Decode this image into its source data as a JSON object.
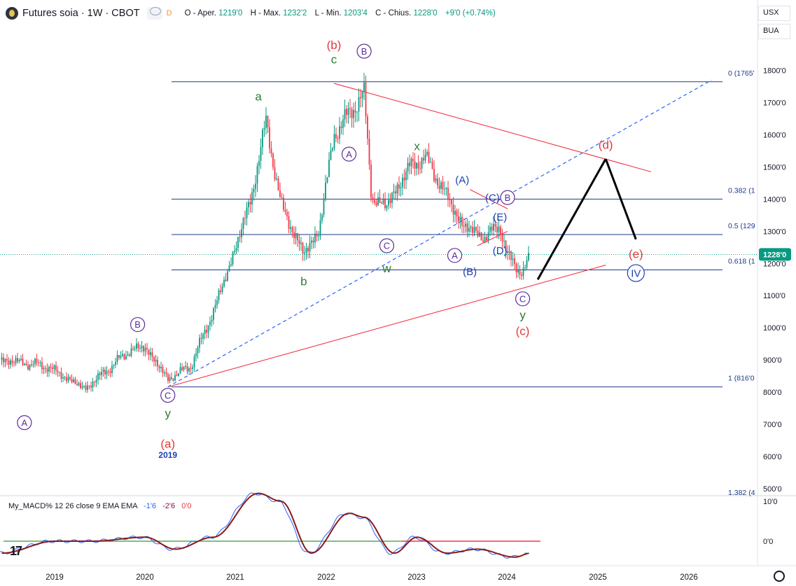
{
  "header": {
    "title": "Futures soia · 1W · CBOT",
    "badge": "D",
    "open_label": "O - Aper.",
    "open": "1219'0",
    "high_label": "H - Max.",
    "high": "1232'2",
    "low_label": "L - Min.",
    "low": "1203'4",
    "close_label": "C - Chius.",
    "close": "1228'0",
    "change": "+9'0 (+0.74%)"
  },
  "right_controls": {
    "currency": "USX",
    "unit": "BUA"
  },
  "price_axis": {
    "ticks": [
      500,
      600,
      700,
      800,
      900,
      1000,
      1100,
      1200,
      1300,
      1400,
      1500,
      1600,
      1700,
      1800
    ],
    "tick_labels": [
      "500'0",
      "600'0",
      "700'0",
      "800'0",
      "900'0",
      "1000'0",
      "1100'0",
      "1200'0",
      "1300'0",
      "1400'0",
      "1500'0",
      "1600'0",
      "1700'0",
      "1800'0"
    ],
    "last_price_label": "1228'0",
    "last_price": 1228
  },
  "time_axis": {
    "labels": [
      "2019",
      "2020",
      "2021",
      "2022",
      "2023",
      "2024",
      "2025",
      "2026"
    ]
  },
  "macd": {
    "label": "My_MACD% 12 26 close 9 EMA EMA",
    "v1": "-1'6",
    "v2": "-2'6",
    "v3": "0'0",
    "ticks": [
      "10'0",
      "0'0"
    ]
  },
  "chart_data": {
    "type": "candlestick",
    "fib_levels": [
      {
        "label": "0 (1765'",
        "price": 1765
      },
      {
        "label": "0.382 (1",
        "price": 1400
      },
      {
        "label": "0.5 (129",
        "price": 1290
      },
      {
        "label": "0.618 (1",
        "price": 1180
      },
      {
        "label": "1 (816'0",
        "price": 816
      },
      {
        "label": "1.382 (4",
        "price": 450
      }
    ],
    "price_series_weekly_close_approx": [
      [
        "2018-06",
        900
      ],
      [
        "2018-12",
        880
      ],
      [
        "2019-05",
        810
      ],
      [
        "2019-08",
        870
      ],
      [
        "2019-11",
        930
      ],
      [
        "2020-01",
        940
      ],
      [
        "2020-04",
        840
      ],
      [
        "2020-07",
        880
      ],
      [
        "2020-10",
        1050
      ],
      [
        "2020-12",
        1180
      ],
      [
        "2021-03",
        1400
      ],
      [
        "2021-05",
        1640
      ],
      [
        "2021-07",
        1380
      ],
      [
        "2021-10",
        1230
      ],
      [
        "2021-12",
        1300
      ],
      [
        "2022-02",
        1600
      ],
      [
        "2022-06",
        1730
      ],
      [
        "2022-07",
        1400
      ],
      [
        "2022-09",
        1380
      ],
      [
        "2022-12",
        1500
      ],
      [
        "2023-02",
        1530
      ],
      [
        "2023-04",
        1450
      ],
      [
        "2023-07",
        1320
      ],
      [
        "2023-10",
        1280
      ],
      [
        "2023-12",
        1320
      ],
      [
        "2024-01",
        1220
      ],
      [
        "2024-03",
        1170
      ],
      [
        "2024-04",
        1228
      ]
    ],
    "wave_labels": [
      {
        "text": "A",
        "style": "circle-purple",
        "date": "2018-09",
        "price": 705
      },
      {
        "text": "B",
        "style": "circle-purple",
        "date": "2019-12",
        "price": 1010
      },
      {
        "text": "C",
        "style": "circle-purple",
        "date": "2020-04",
        "price": 790
      },
      {
        "text": "y",
        "style": "green",
        "date": "2020-04",
        "price": 735
      },
      {
        "text": "(a)",
        "style": "red",
        "date": "2020-04",
        "price": 640
      },
      {
        "text": "2019",
        "style": "blue-small",
        "date": "2020-04",
        "price": 605
      },
      {
        "text": "a",
        "style": "green",
        "date": "2021-04",
        "price": 1720
      },
      {
        "text": "b",
        "style": "green",
        "date": "2021-10",
        "price": 1145
      },
      {
        "text": "(b)",
        "style": "red",
        "date": "2022-02",
        "price": 1880
      },
      {
        "text": "c",
        "style": "green",
        "date": "2022-02",
        "price": 1835
      },
      {
        "text": "B",
        "style": "circle-purple",
        "date": "2022-06",
        "price": 1860
      },
      {
        "text": "A",
        "style": "circle-purple",
        "date": "2022-04",
        "price": 1540
      },
      {
        "text": "C",
        "style": "circle-purple",
        "date": "2022-09",
        "price": 1255
      },
      {
        "text": "w",
        "style": "green",
        "date": "2022-09",
        "price": 1185
      },
      {
        "text": "x",
        "style": "green",
        "date": "2023-01",
        "price": 1565
      },
      {
        "text": "(A)",
        "style": "blue",
        "date": "2023-07",
        "price": 1460
      },
      {
        "text": "A",
        "style": "circle-purple",
        "date": "2023-06",
        "price": 1225
      },
      {
        "text": "(B)",
        "style": "blue",
        "date": "2023-08",
        "price": 1175
      },
      {
        "text": "(C)",
        "style": "blue",
        "date": "2023-11",
        "price": 1405
      },
      {
        "text": "B",
        "style": "circle-purple",
        "date": "2024-01",
        "price": 1405
      },
      {
        "text": "(E)",
        "style": "blue",
        "date": "2023-12",
        "price": 1345
      },
      {
        "text": "(D)",
        "style": "blue",
        "date": "2023-12",
        "price": 1240
      },
      {
        "text": "C",
        "style": "circle-purple",
        "date": "2024-03",
        "price": 1090
      },
      {
        "text": "y",
        "style": "green",
        "date": "2024-03",
        "price": 1040
      },
      {
        "text": "(c)",
        "style": "red",
        "date": "2024-03",
        "price": 990
      },
      {
        "text": "(d)",
        "style": "red",
        "date": "2025-02",
        "price": 1570
      },
      {
        "text": "(e)",
        "style": "red",
        "date": "2025-06",
        "price": 1230
      },
      {
        "text": "IV",
        "style": "circle-blue",
        "date": "2025-06",
        "price": 1170
      }
    ],
    "trendlines": [
      {
        "kind": "red",
        "from": [
          "2020-04",
          816
        ],
        "to": [
          "2025-02",
          1195
        ]
      },
      {
        "kind": "red",
        "from": [
          "2022-02",
          1760
        ],
        "to": [
          "2025-08",
          1485
        ]
      },
      {
        "kind": "blue-dashed",
        "from": [
          "2020-04",
          816
        ],
        "to": [
          "2026-04",
          1770
        ]
      },
      {
        "kind": "red-short",
        "from": [
          "2023-08",
          1430
        ],
        "to": [
          "2024-01",
          1370
        ]
      },
      {
        "kind": "red-short",
        "from": [
          "2023-09",
          1255
        ],
        "to": [
          "2024-01",
          1300
        ]
      },
      {
        "kind": "projection",
        "from": [
          "2024-05",
          1150
        ],
        "to": [
          "2025-02",
          1525
        ]
      },
      {
        "kind": "projection",
        "from": [
          "2025-02",
          1525
        ],
        "to": [
          "2025-06",
          1275
        ]
      }
    ],
    "macd_series": [
      [
        "2018-06",
        -3
      ],
      [
        "2019-01",
        0
      ],
      [
        "2019-06",
        0
      ],
      [
        "2020-01",
        1
      ],
      [
        "2020-05",
        -2
      ],
      [
        "2020-10",
        1
      ],
      [
        "2021-04",
        12
      ],
      [
        "2021-07",
        10
      ],
      [
        "2021-11",
        -3
      ],
      [
        "2022-04",
        7
      ],
      [
        "2022-06",
        6
      ],
      [
        "2022-10",
        -3
      ],
      [
        "2023-01",
        1
      ],
      [
        "2023-05",
        -3
      ],
      [
        "2023-09",
        -2
      ],
      [
        "2024-02",
        -4
      ],
      [
        "2024-04",
        -3
      ]
    ]
  }
}
